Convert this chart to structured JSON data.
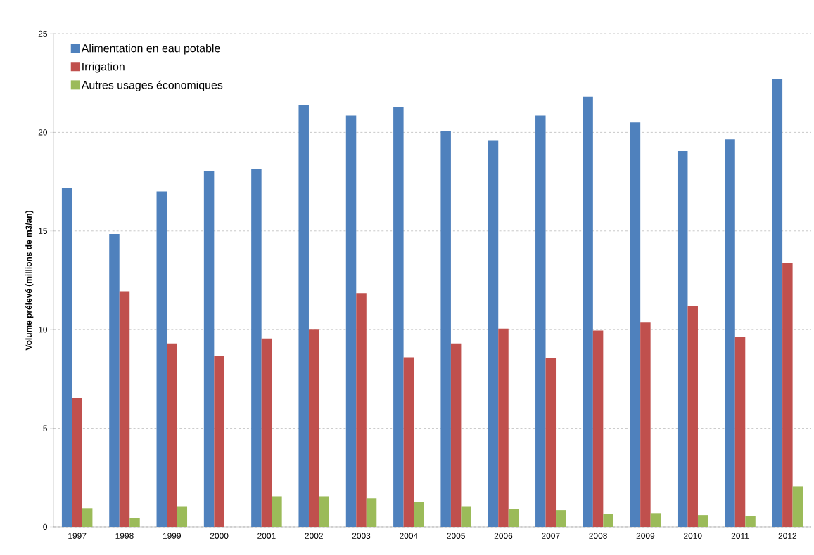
{
  "chart_data": {
    "type": "bar",
    "ylabel": "Volume prélevé (millions de m3/an)",
    "categories": [
      "1997",
      "1998",
      "1999",
      "2000",
      "2001",
      "2002",
      "2003",
      "2004",
      "2005",
      "2006",
      "2007",
      "2008",
      "2009",
      "2010",
      "2011",
      "2012"
    ],
    "series": [
      {
        "name": "Alimentation en eau potable",
        "color": "#4f81bd",
        "values": [
          17.2,
          14.85,
          17.0,
          18.05,
          18.15,
          21.4,
          20.85,
          21.3,
          20.05,
          19.6,
          20.85,
          21.8,
          20.5,
          19.05,
          19.65,
          22.7
        ]
      },
      {
        "name": "Irrigation",
        "color": "#c0504d",
        "values": [
          6.55,
          11.95,
          9.3,
          8.65,
          9.55,
          10.0,
          11.85,
          8.6,
          9.3,
          10.05,
          8.55,
          9.95,
          10.35,
          11.2,
          9.65,
          13.35
        ]
      },
      {
        "name": "Autres usages économiques",
        "color": "#9bbb59",
        "values": [
          0.95,
          0.45,
          1.05,
          0.0,
          1.55,
          1.55,
          1.45,
          1.25,
          1.05,
          0.9,
          0.85,
          0.65,
          0.7,
          0.6,
          0.55,
          2.05
        ]
      }
    ],
    "ylim": [
      0,
      25
    ],
    "yticks": [
      0,
      5,
      10,
      15,
      20,
      25
    ],
    "grid": "y",
    "legend": "top left"
  }
}
